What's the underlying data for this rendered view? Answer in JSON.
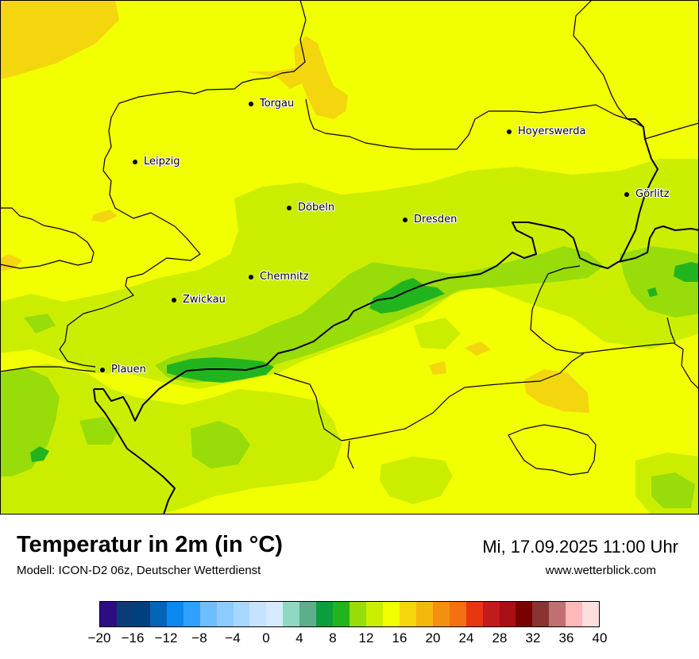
{
  "title": "Temperatur in 2m (in °C)",
  "model": "Modell: ICON-D2 06z, Deutscher Wetterdienst",
  "datetime": "Mi, 17.09.2025 11:00 Uhr",
  "website": "www.wetterblick.com",
  "colors": {
    "background": "#f2ff00",
    "warm": "#f3d60d",
    "light_green": "#cbee00",
    "mid_green": "#98dc0a",
    "dark_green": "#22b41e"
  },
  "cities": [
    {
      "name": "Torgau"
    },
    {
      "name": "Leipzig"
    },
    {
      "name": "Hoyerswerda"
    },
    {
      "name": "Görlitz"
    },
    {
      "name": "Döbeln"
    },
    {
      "name": "Dresden"
    },
    {
      "name": "Chemnitz"
    },
    {
      "name": "Zwickau"
    },
    {
      "name": "Plauen"
    }
  ],
  "scale": {
    "ticks": [
      "−20",
      "−16",
      "−12",
      "−8",
      "−4",
      "0",
      "4",
      "8",
      "12",
      "16",
      "20",
      "24",
      "28",
      "32",
      "36",
      "40"
    ],
    "colors": [
      "#2d0e82",
      "#0a3c7a",
      "#003f80",
      "#0563b8",
      "#0a89f0",
      "#30a0ff",
      "#6dbeff",
      "#8ccbff",
      "#a7d7ff",
      "#c5e2ff",
      "#d6eaff",
      "#8ed9c0",
      "#5dae8a",
      "#0b9e3a",
      "#22b41e",
      "#98dc0a",
      "#cbee00",
      "#f2ff00",
      "#f3d60d",
      "#f4b80c",
      "#f49010",
      "#f47010",
      "#e8360e",
      "#c21b1b",
      "#a81015",
      "#7a0000",
      "#8b3333",
      "#c07070",
      "#ffb8b8",
      "#ffdede"
    ]
  }
}
